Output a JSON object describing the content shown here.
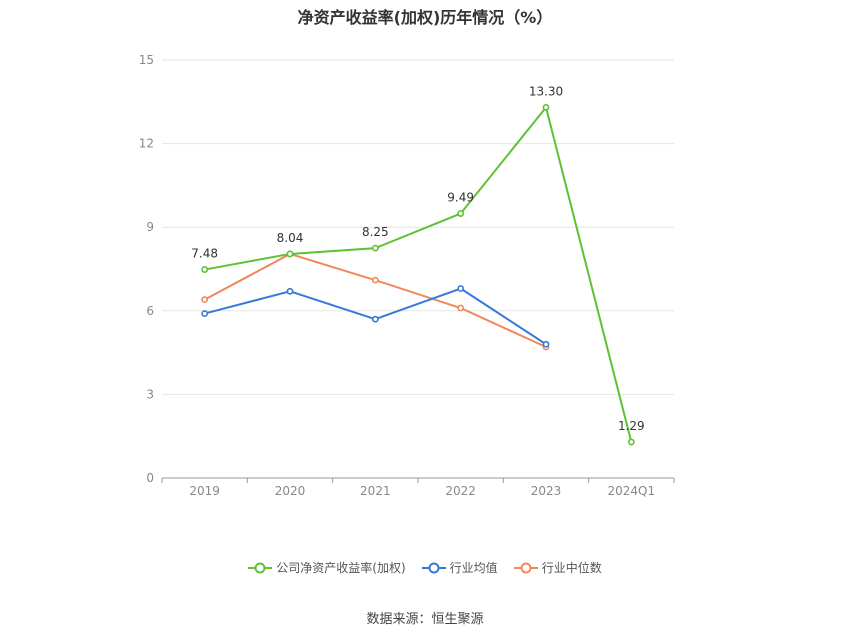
{
  "chart_data": {
    "type": "line",
    "title": "净资产收益率(加权)历年情况（%）",
    "categories": [
      "2019",
      "2020",
      "2021",
      "2022",
      "2023",
      "2024Q1"
    ],
    "ylim": [
      0,
      15
    ],
    "yticks": [
      0,
      3,
      6,
      9,
      12,
      15
    ],
    "grid": true,
    "legend_position": "bottom",
    "series": [
      {
        "name": "公司净资产收益率(加权)",
        "color": "#5ec134",
        "values": [
          7.48,
          8.04,
          8.25,
          9.49,
          13.3,
          1.29
        ],
        "labels": [
          "7.48",
          "8.04",
          "8.25",
          "9.49",
          "13.30",
          "1.29"
        ]
      },
      {
        "name": "行业均值",
        "color": "#3a78d6",
        "values": [
          5.9,
          6.7,
          5.7,
          6.8,
          4.8,
          null
        ]
      },
      {
        "name": "行业中位数",
        "color": "#f2875a",
        "values": [
          6.4,
          8.04,
          7.1,
          6.1,
          4.7,
          null
        ]
      }
    ]
  },
  "source": "数据来源：恒生聚源"
}
